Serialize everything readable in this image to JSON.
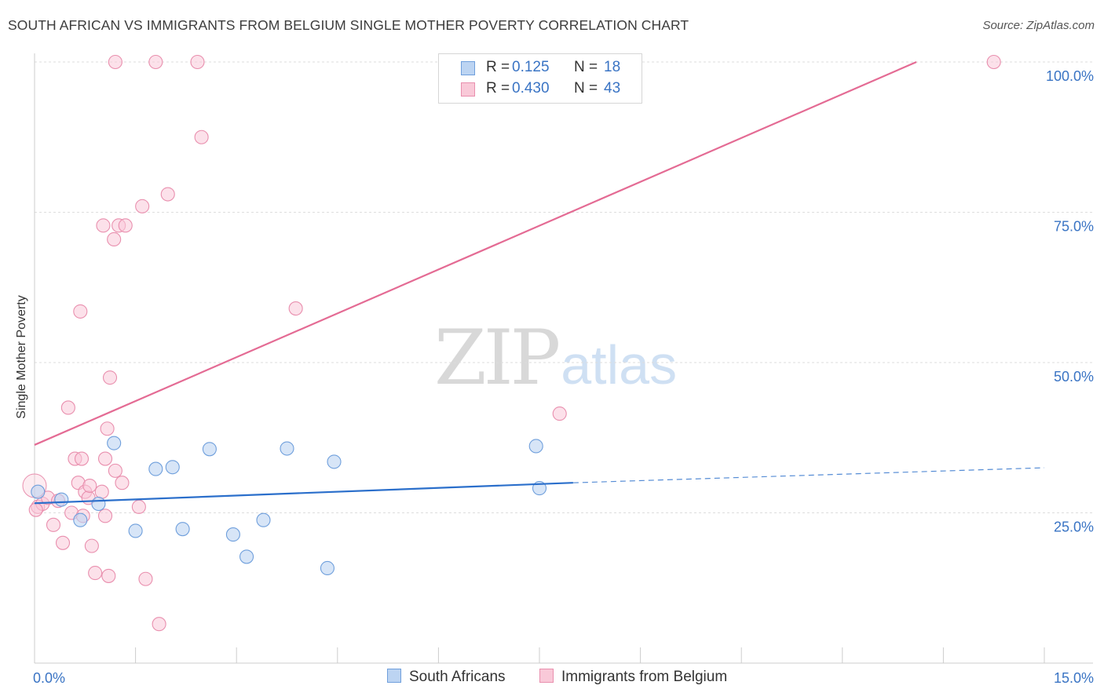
{
  "header": {
    "title": "SOUTH AFRICAN VS IMMIGRANTS FROM BELGIUM SINGLE MOTHER POVERTY CORRELATION CHART",
    "source": "Source: ZipAtlas.com"
  },
  "watermark": {
    "zip": "ZIP",
    "atlas": "atlas"
  },
  "colors": {
    "blue_fill": "#bcd4f2",
    "blue_stroke": "#6f9fdc",
    "blue_line": "#2b6fcb",
    "pink_fill": "#f9c9d8",
    "pink_stroke": "#e98fae",
    "pink_line": "#e46b94",
    "axis_text": "#3a74c4",
    "grid": "#dddddd"
  },
  "legend_top": {
    "rows": [
      {
        "r_label": "R =",
        "r_value": "0.125",
        "n_label": "N =",
        "n_value": "18"
      },
      {
        "r_label": "R =",
        "r_value": "0.430",
        "n_label": "N =",
        "n_value": "43"
      }
    ]
  },
  "legend_bottom": {
    "series_a": "South Africans",
    "series_b": "Immigrants from Belgium"
  },
  "chart_data": {
    "type": "scatter",
    "title": "SOUTH AFRICAN VS IMMIGRANTS FROM BELGIUM SINGLE MOTHER POVERTY CORRELATION CHART",
    "xlabel": "",
    "ylabel": "Single Mother Poverty",
    "xlim": [
      0,
      15
    ],
    "ylim": [
      0,
      100
    ],
    "x_tick_labels": [
      "0.0%",
      "15.0%"
    ],
    "y_ticks": [
      25,
      50,
      75,
      100
    ],
    "y_tick_labels": [
      "25.0%",
      "50.0%",
      "75.0%",
      "100.0%"
    ],
    "grid": true,
    "series": [
      {
        "name": "South Africans",
        "r": 0.125,
        "n": 18,
        "points": [
          [
            0.05,
            28.5
          ],
          [
            0.4,
            27.2
          ],
          [
            0.68,
            23.8
          ],
          [
            0.95,
            26.5
          ],
          [
            1.18,
            36.6
          ],
          [
            1.5,
            22.0
          ],
          [
            1.8,
            32.3
          ],
          [
            2.05,
            32.6
          ],
          [
            2.2,
            22.3
          ],
          [
            2.6,
            35.6
          ],
          [
            2.95,
            21.4
          ],
          [
            3.15,
            17.7
          ],
          [
            3.4,
            23.8
          ],
          [
            3.75,
            35.7
          ],
          [
            4.35,
            15.8
          ],
          [
            4.45,
            33.5
          ],
          [
            7.45,
            36.1
          ],
          [
            7.5,
            29.1
          ]
        ],
        "trend": {
          "x0": 0,
          "y0": 26.6,
          "x1": 8.0,
          "y1": 30.0,
          "dash_to_x": 15,
          "dash_to_y": 32.5
        }
      },
      {
        "name": "Immigrants from Belgium",
        "r": 0.43,
        "n": 43,
        "points": [
          [
            0.05,
            26.0
          ],
          [
            0.12,
            26.5
          ],
          [
            0.2,
            27.5
          ],
          [
            0.28,
            23.0
          ],
          [
            0.35,
            27.0
          ],
          [
            0.42,
            20.0
          ],
          [
            0.5,
            42.5
          ],
          [
            0.55,
            25.0
          ],
          [
            0.6,
            34.0
          ],
          [
            0.65,
            30.0
          ],
          [
            0.68,
            58.5
          ],
          [
            0.72,
            24.5
          ],
          [
            0.75,
            28.5
          ],
          [
            0.8,
            27.5
          ],
          [
            0.82,
            29.5
          ],
          [
            0.7,
            34.0
          ],
          [
            0.85,
            19.5
          ],
          [
            0.9,
            15.0
          ],
          [
            1.0,
            28.5
          ],
          [
            1.02,
            72.8
          ],
          [
            1.05,
            24.5
          ],
          [
            1.1,
            14.5
          ],
          [
            1.05,
            34.0
          ],
          [
            1.08,
            39.0
          ],
          [
            1.12,
            47.5
          ],
          [
            1.18,
            70.5
          ],
          [
            1.25,
            72.8
          ],
          [
            1.2,
            32.0
          ],
          [
            1.3,
            30.0
          ],
          [
            1.35,
            72.8
          ],
          [
            1.55,
            26.0
          ],
          [
            1.6,
            76.0
          ],
          [
            1.65,
            14.0
          ],
          [
            1.85,
            6.5
          ],
          [
            1.98,
            78.0
          ],
          [
            1.2,
            100.0
          ],
          [
            1.8,
            100.0
          ],
          [
            2.42,
            100.0
          ],
          [
            2.48,
            87.5
          ],
          [
            3.88,
            59.0
          ],
          [
            7.8,
            41.5
          ],
          [
            14.25,
            100.0
          ],
          [
            0.02,
            25.5
          ]
        ],
        "trend": {
          "x0": 0,
          "y0": 36.3,
          "x1": 13.1,
          "y1": 100.0
        }
      }
    ]
  }
}
